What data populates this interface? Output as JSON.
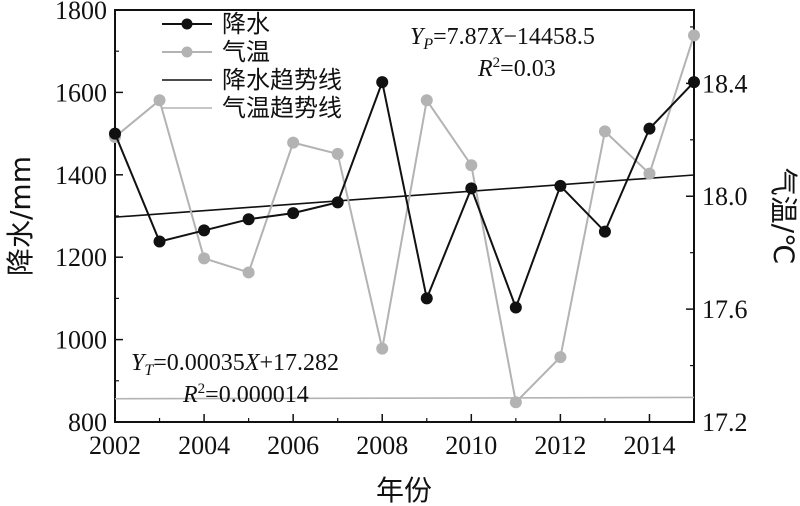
{
  "chart_data": {
    "type": "line",
    "x": [
      2002,
      2003,
      2004,
      2005,
      2006,
      2007,
      2008,
      2009,
      2010,
      2011,
      2012,
      2013,
      2014,
      2015
    ],
    "series": [
      {
        "name": "降水",
        "axis": "left",
        "color": "#111111",
        "marker": "circle",
        "values": [
          1500,
          1238,
          1265,
          1292,
          1307,
          1333,
          1625,
          1100,
          1367,
          1078,
          1373,
          1262,
          1512,
          1625
        ]
      },
      {
        "name": "气温",
        "axis": "right",
        "color": "#b3b3b3",
        "marker": "circle",
        "values": [
          18.21,
          18.34,
          17.78,
          17.73,
          18.19,
          18.15,
          17.46,
          18.34,
          18.11,
          17.27,
          17.43,
          18.23,
          18.08,
          18.57
        ]
      }
    ],
    "trendlines": [
      {
        "name": "降水趋势线",
        "axis": "left",
        "color": "#111111",
        "slope": 7.87,
        "intercept": -14458.5
      },
      {
        "name": "气温趋势线",
        "axis": "right",
        "color": "#b3b3b3",
        "slope": 0.00035,
        "intercept": 17.282
      }
    ],
    "xlim": [
      2002,
      2015
    ],
    "xticks": [
      "2002",
      "2004",
      "2006",
      "2008",
      "2010",
      "2012",
      "2014"
    ],
    "ylim_left": [
      800,
      1800
    ],
    "yticks_left": [
      "800",
      "1000",
      "1200",
      "1400",
      "1600",
      "1800"
    ],
    "ylim_right": [
      17.2,
      18.66
    ],
    "yticks_right": [
      "17.2",
      "17.6",
      "18.0",
      "18.4"
    ],
    "xlabel": "年份",
    "ylabel_left": "降水/mm",
    "ylabel_right": "气温/℃",
    "legend_position": "top-left",
    "annotations": {
      "precip_eq": "YP=7.87X−14458.5",
      "precip_r2": "R2=0.03",
      "temp_eq": "YT=0.00035X+17.282",
      "temp_r2": "R2=0.000014"
    }
  }
}
